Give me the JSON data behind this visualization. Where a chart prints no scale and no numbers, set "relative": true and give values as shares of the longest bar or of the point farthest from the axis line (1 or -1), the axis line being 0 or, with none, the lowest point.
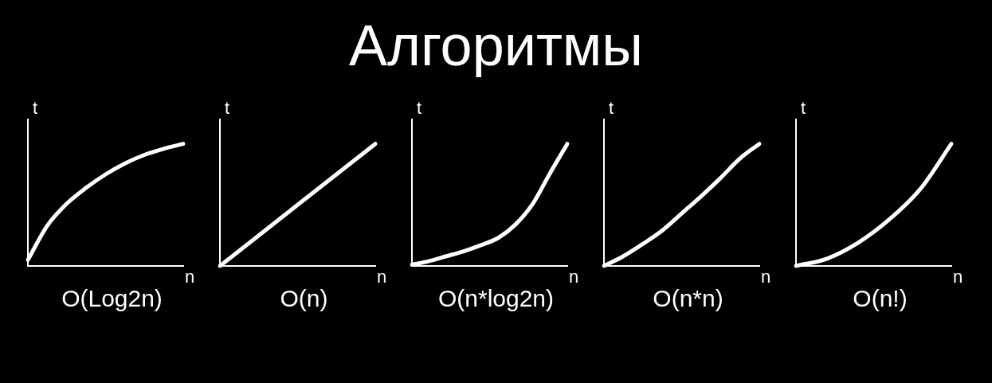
{
  "chart_data": [
    {
      "type": "line",
      "xlabel": "n",
      "ylabel": "t",
      "annotations": [
        "O(Log2n)"
      ],
      "relative": true,
      "color": "#ffffff",
      "categories": [
        null,
        null,
        null,
        null,
        null,
        null,
        null,
        null,
        null
      ],
      "values": [
        0.05,
        0.33,
        0.51,
        0.64,
        0.75,
        0.84,
        0.91,
        0.96,
        1
      ]
    },
    {
      "type": "line",
      "xlabel": "n",
      "ylabel": "t",
      "annotations": [
        "O(n)"
      ],
      "relative": true,
      "color": "#ffffff",
      "categories": [
        null,
        null,
        null,
        null,
        null
      ],
      "values": [
        0,
        0.25,
        0.5,
        0.75,
        1
      ]
    },
    {
      "type": "line",
      "title": "Алгоритмы",
      "xlabel": "n",
      "ylabel": "t",
      "annotations": [
        "O(n*log2n)"
      ],
      "relative": true,
      "color": "#ffffff",
      "categories": [
        null,
        null,
        null,
        null,
        null,
        null,
        null,
        null,
        null,
        null
      ],
      "values": [
        0.01,
        0.04,
        0.08,
        0.12,
        0.17,
        0.23,
        0.34,
        0.51,
        0.76,
        1
      ]
    },
    {
      "type": "line",
      "xlabel": "n",
      "ylabel": "t",
      "annotations": [
        "O(n*n)"
      ],
      "relative": true,
      "color": "#ffffff",
      "categories": [
        null,
        null,
        null,
        null,
        null,
        null,
        null,
        null,
        null
      ],
      "values": [
        0,
        0.08,
        0.18,
        0.29,
        0.43,
        0.57,
        0.72,
        0.88,
        1
      ]
    },
    {
      "type": "line",
      "xlabel": "n",
      "ylabel": "t",
      "annotations": [
        "O(n!)"
      ],
      "relative": true,
      "color": "#ffffff",
      "categories": [
        null,
        null,
        null,
        null,
        null,
        null
      ],
      "values": [
        0,
        0.06,
        0.19,
        0.38,
        0.63,
        1
      ]
    }
  ]
}
